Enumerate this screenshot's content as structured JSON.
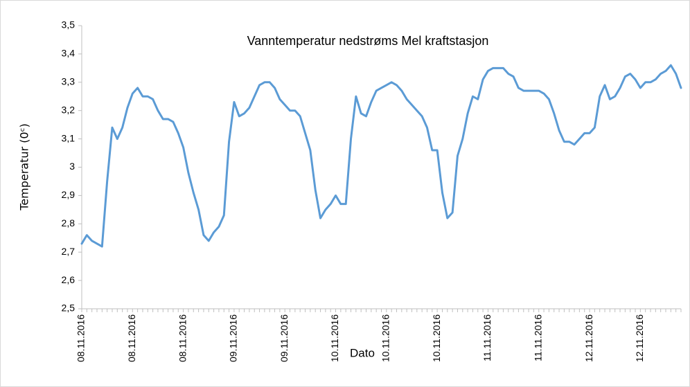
{
  "chart_data": {
    "type": "line",
    "title": "Vanntemperatur nedstrøms Mel kraftstasjon",
    "x_label": "Dato",
    "y_label": "Temperatur (0ᶜ)",
    "color": "#5b9bd5",
    "categories": [
      "08.11.2016",
      null,
      null,
      null,
      null,
      null,
      null,
      null,
      null,
      null,
      "08.11.2016",
      null,
      null,
      null,
      null,
      null,
      null,
      null,
      null,
      null,
      "08.11.2016",
      null,
      null,
      null,
      null,
      null,
      null,
      null,
      null,
      null,
      "09.11.2016",
      null,
      null,
      null,
      null,
      null,
      null,
      null,
      null,
      null,
      "09.11.2016",
      null,
      null,
      null,
      null,
      null,
      null,
      null,
      null,
      null,
      "10.11.2016",
      null,
      null,
      null,
      null,
      null,
      null,
      null,
      null,
      null,
      "10.11.2016",
      null,
      null,
      null,
      null,
      null,
      null,
      null,
      null,
      null,
      "10.11.2016",
      null,
      null,
      null,
      null,
      null,
      null,
      null,
      null,
      null,
      "11.11.2016",
      null,
      null,
      null,
      null,
      null,
      null,
      null,
      null,
      null,
      "11.11.2016",
      null,
      null,
      null,
      null,
      null,
      null,
      null,
      null,
      null,
      "12.11.2016",
      null,
      null,
      null,
      null,
      null,
      null,
      null,
      null,
      null,
      "12.11.2016",
      null,
      null,
      null,
      null,
      null,
      null,
      null,
      null
    ],
    "values": [
      2.73,
      2.76,
      2.74,
      2.73,
      2.72,
      2.95,
      3.14,
      3.1,
      3.14,
      3.21,
      3.26,
      3.28,
      3.25,
      3.25,
      3.24,
      3.2,
      3.17,
      3.17,
      3.16,
      3.12,
      3.07,
      2.98,
      2.91,
      2.85,
      2.76,
      2.74,
      2.77,
      2.79,
      2.83,
      3.09,
      3.23,
      3.18,
      3.19,
      3.21,
      3.25,
      3.29,
      3.3,
      3.3,
      3.28,
      3.24,
      3.22,
      3.2,
      3.2,
      3.18,
      3.12,
      3.06,
      2.92,
      2.82,
      2.85,
      2.87,
      2.9,
      2.87,
      2.87,
      3.1,
      3.25,
      3.19,
      3.18,
      3.23,
      3.27,
      3.28,
      3.29,
      3.3,
      3.29,
      3.27,
      3.24,
      3.22,
      3.2,
      3.18,
      3.14,
      3.06,
      3.06,
      2.91,
      2.82,
      2.84,
      3.04,
      3.1,
      3.19,
      3.25,
      3.24,
      3.31,
      3.34,
      3.35,
      3.35,
      3.35,
      3.33,
      3.32,
      3.28,
      3.27,
      3.27,
      3.27,
      3.27,
      3.26,
      3.24,
      3.19,
      3.13,
      3.09,
      3.09,
      3.08,
      3.1,
      3.12,
      3.12,
      3.14,
      3.25,
      3.29,
      3.24,
      3.25,
      3.28,
      3.32,
      3.33,
      3.31,
      3.28,
      3.3,
      3.3,
      3.31,
      3.33,
      3.34,
      3.36,
      3.33,
      3.28
    ],
    "ylim": [
      2.5,
      3.5
    ],
    "yticks": [
      {
        "value": 2.5,
        "label": "2,5"
      },
      {
        "value": 2.6,
        "label": "2,6"
      },
      {
        "value": 2.7,
        "label": "2,7"
      },
      {
        "value": 2.8,
        "label": "2,8"
      },
      {
        "value": 2.9,
        "label": "2,9"
      },
      3,
      {
        "value": 3.1,
        "label": "3,1"
      },
      {
        "value": 3.2,
        "label": "3,2"
      },
      {
        "value": 3.3,
        "label": "3,3"
      },
      {
        "value": 3.4,
        "label": "3,4"
      },
      {
        "value": 3.5,
        "label": "3,5"
      }
    ],
    "grid": false
  }
}
